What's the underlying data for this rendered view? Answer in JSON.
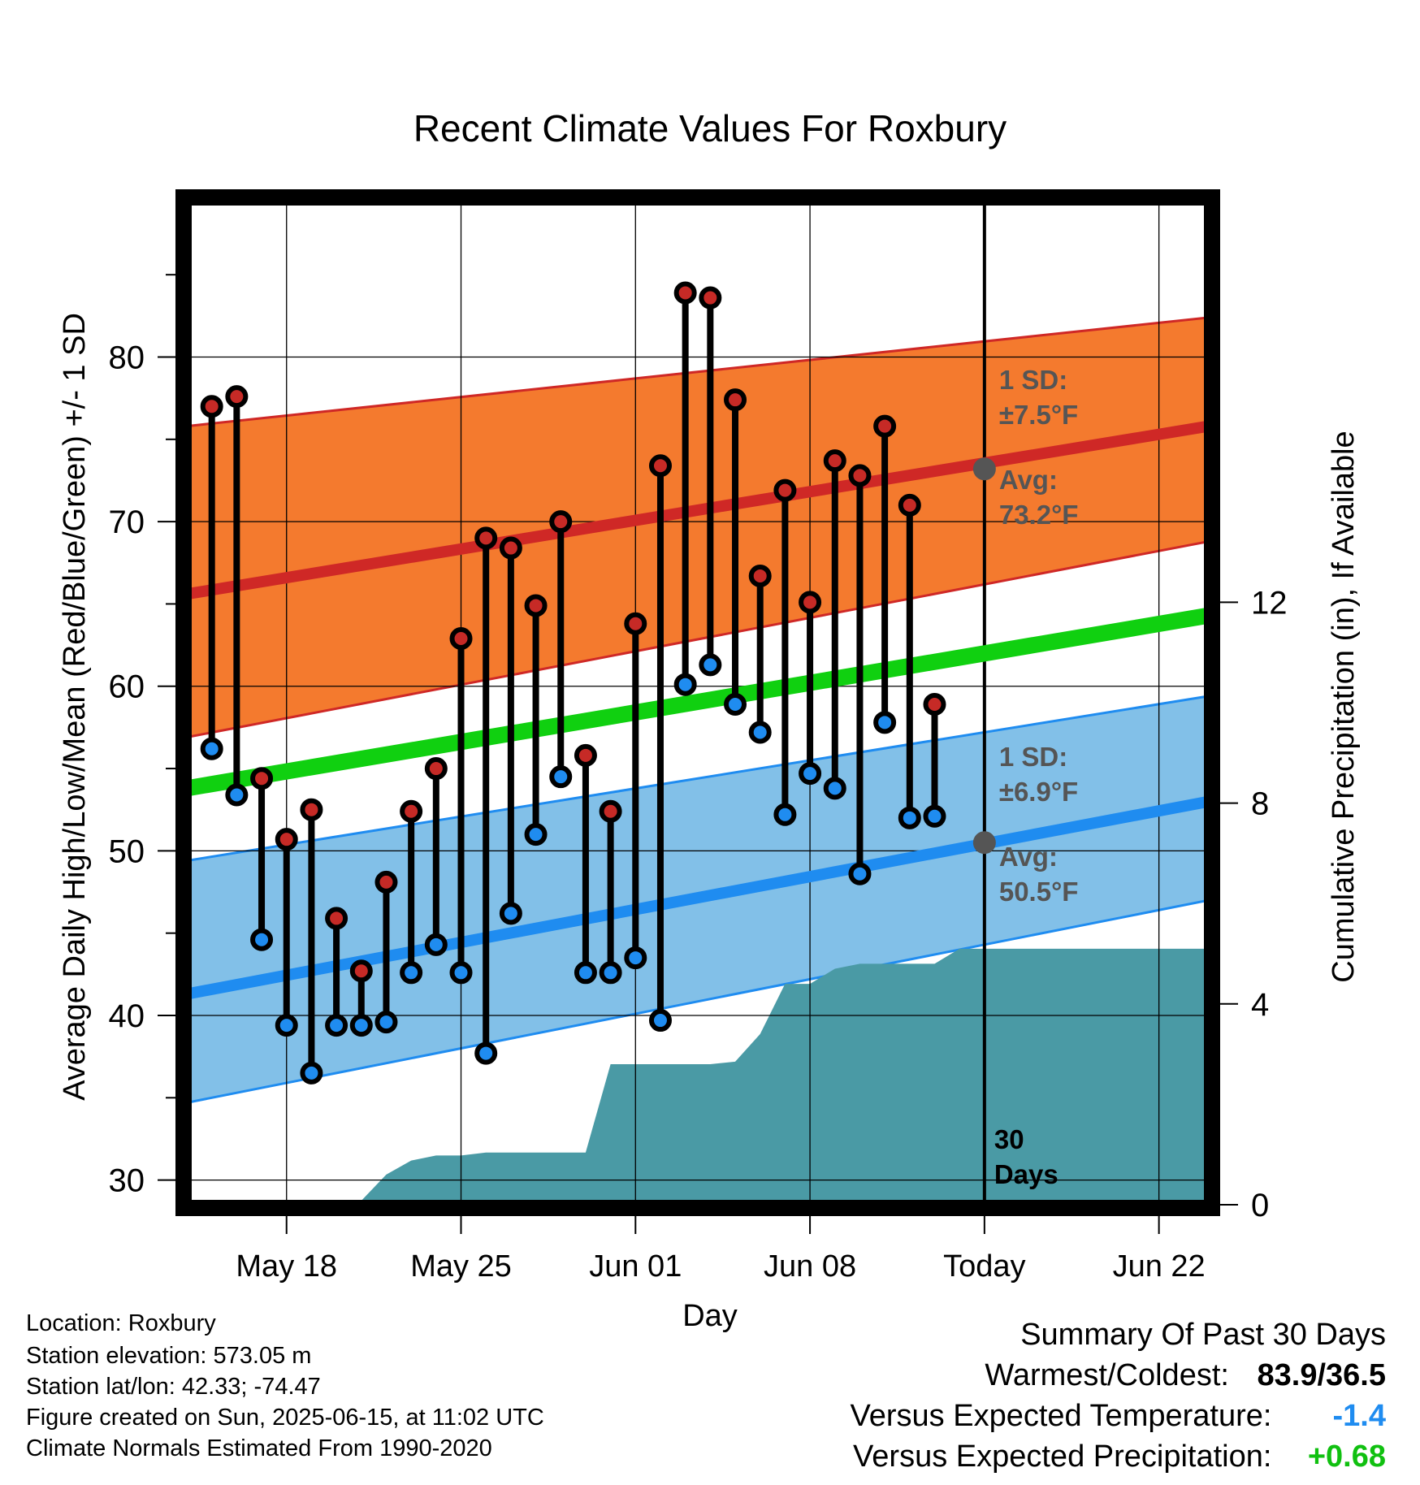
{
  "chart_data": {
    "type": "line",
    "title": "Recent Climate Values For Roxbury",
    "xlabel": "Day",
    "ylabel": "Average Daily High/Low/Mean (Red/Blue/Green) +/- 1 SD",
    "y2label": "Cumulative Precipitation (in), If Available",
    "ylim": [
      28.5,
      89.5
    ],
    "y2lim": [
      0,
      20
    ],
    "xlim": [
      "2025-05-14",
      "2025-06-24"
    ],
    "yticks": [
      "30",
      "40",
      "50",
      "60",
      "70",
      "80"
    ],
    "y2ticks": [
      "0",
      "4",
      "8",
      "12"
    ],
    "xtick_labels": [
      {
        "date": "2025-05-18",
        "label": "May 18"
      },
      {
        "date": "2025-05-25",
        "label": "May 25"
      },
      {
        "date": "2025-06-01",
        "label": "Jun 01"
      },
      {
        "date": "2025-06-08",
        "label": "Jun 08"
      },
      {
        "date": "2025-06-15",
        "label": "Today"
      },
      {
        "date": "2025-06-22",
        "label": "Jun 22"
      }
    ],
    "grid": true,
    "today_date": "2025-06-15",
    "days_label": [
      "30",
      "Days"
    ],
    "normals": {
      "dates": [
        "2025-05-14",
        "2025-06-24"
      ],
      "high_mean": [
        65.6,
        75.8
      ],
      "high_upper": [
        75.8,
        82.4
      ],
      "high_lower": [
        56.9,
        68.8
      ],
      "low_mean": [
        41.3,
        53.0
      ],
      "low_upper": [
        49.4,
        59.4
      ],
      "low_lower": [
        34.7,
        47.0
      ],
      "mean": [
        53.8,
        64.3
      ]
    },
    "high_annotation": {
      "sd_label": "1 SD:",
      "sd_value": "±7.5°F",
      "avg_label": "Avg:",
      "avg_value": "73.2°F",
      "avg": 73.2
    },
    "low_annotation": {
      "sd_label": "1 SD:",
      "sd_value": "±6.9°F",
      "avg_label": "Avg:",
      "avg_value": "50.5°F",
      "avg": 50.5
    },
    "observations": {
      "dates": [
        "2025-05-15",
        "2025-05-16",
        "2025-05-17",
        "2025-05-18",
        "2025-05-19",
        "2025-05-20",
        "2025-05-21",
        "2025-05-22",
        "2025-05-23",
        "2025-05-24",
        "2025-05-25",
        "2025-05-26",
        "2025-05-27",
        "2025-05-28",
        "2025-05-29",
        "2025-05-30",
        "2025-05-31",
        "2025-06-01",
        "2025-06-02",
        "2025-06-03",
        "2025-06-04",
        "2025-06-05",
        "2025-06-06",
        "2025-06-07",
        "2025-06-08",
        "2025-06-09",
        "2025-06-10",
        "2025-06-11",
        "2025-06-12",
        "2025-06-13",
        "2025-06-14"
      ],
      "high": [
        77.0,
        77.6,
        54.4,
        50.7,
        52.5,
        45.9,
        42.7,
        48.1,
        52.4,
        55.0,
        62.9,
        69.0,
        68.4,
        64.9,
        70.0,
        55.8,
        52.4,
        63.8,
        73.4,
        83.9,
        83.6,
        77.4,
        66.7,
        71.9,
        65.1,
        73.7,
        72.8,
        75.8,
        71.0,
        58.9,
        null
      ],
      "low": [
        56.2,
        53.4,
        44.6,
        39.4,
        36.5,
        39.4,
        39.4,
        39.6,
        42.6,
        44.3,
        42.6,
        37.7,
        46.2,
        51.0,
        54.5,
        42.6,
        42.6,
        43.5,
        39.7,
        60.1,
        61.3,
        58.9,
        57.2,
        52.2,
        54.7,
        53.8,
        48.6,
        57.8,
        52.0,
        52.1,
        null
      ]
    },
    "precip_cumulative": {
      "dates": [
        "2025-05-14",
        "2025-05-16",
        "2025-05-18",
        "2025-05-19",
        "2025-05-20",
        "2025-05-21",
        "2025-05-22",
        "2025-05-23",
        "2025-05-24",
        "2025-05-25",
        "2025-05-26",
        "2025-05-27",
        "2025-05-28",
        "2025-05-29",
        "2025-05-30",
        "2025-05-31",
        "2025-06-01",
        "2025-06-02",
        "2025-06-03",
        "2025-06-04",
        "2025-06-05",
        "2025-06-06",
        "2025-06-07",
        "2025-06-08",
        "2025-06-09",
        "2025-06-10",
        "2025-06-11",
        "2025-06-12",
        "2025-06-13",
        "2025-06-14",
        "2025-06-15",
        "2025-06-24"
      ],
      "values": [
        0,
        0,
        0,
        0,
        0,
        0.08,
        0.6,
        0.88,
        0.98,
        0.98,
        1.04,
        1.04,
        1.04,
        1.04,
        1.04,
        2.8,
        2.8,
        2.8,
        2.8,
        2.8,
        2.85,
        3.4,
        4.4,
        4.4,
        4.7,
        4.8,
        4.8,
        4.8,
        4.8,
        5.1,
        5.1,
        5.1
      ]
    },
    "colors": {
      "high_band": "#f47a2e",
      "high_line": "#cf2826",
      "low_band": "#82c0e8",
      "low_line": "#1f8cf0",
      "mean_line": "#10d010",
      "precip": "#4a9aa5",
      "high_dot": "#c62a26",
      "low_dot": "#1f8cf0",
      "annotation": "#555555"
    }
  },
  "info": {
    "location": "Location: Roxbury",
    "elevation": "Station elevation: 573.05 m",
    "latlon": "Station lat/lon: 42.33; -74.47",
    "created": "Figure created on Sun, 2025-06-15, at 11:02 UTC",
    "normals": "Climate Normals Estimated From 1990-2020"
  },
  "summary": {
    "title": "Summary Of Past 30 Days",
    "warmest_label": "Warmest/Coldest:",
    "warmest_value": "83.9/36.5",
    "temp_label": "Versus Expected Temperature:",
    "temp_value": "-1.4",
    "temp_color": "#1f8cf0",
    "precip_label": "Versus Expected Precipitation:",
    "precip_value": "+0.68",
    "precip_color": "#10c010"
  }
}
